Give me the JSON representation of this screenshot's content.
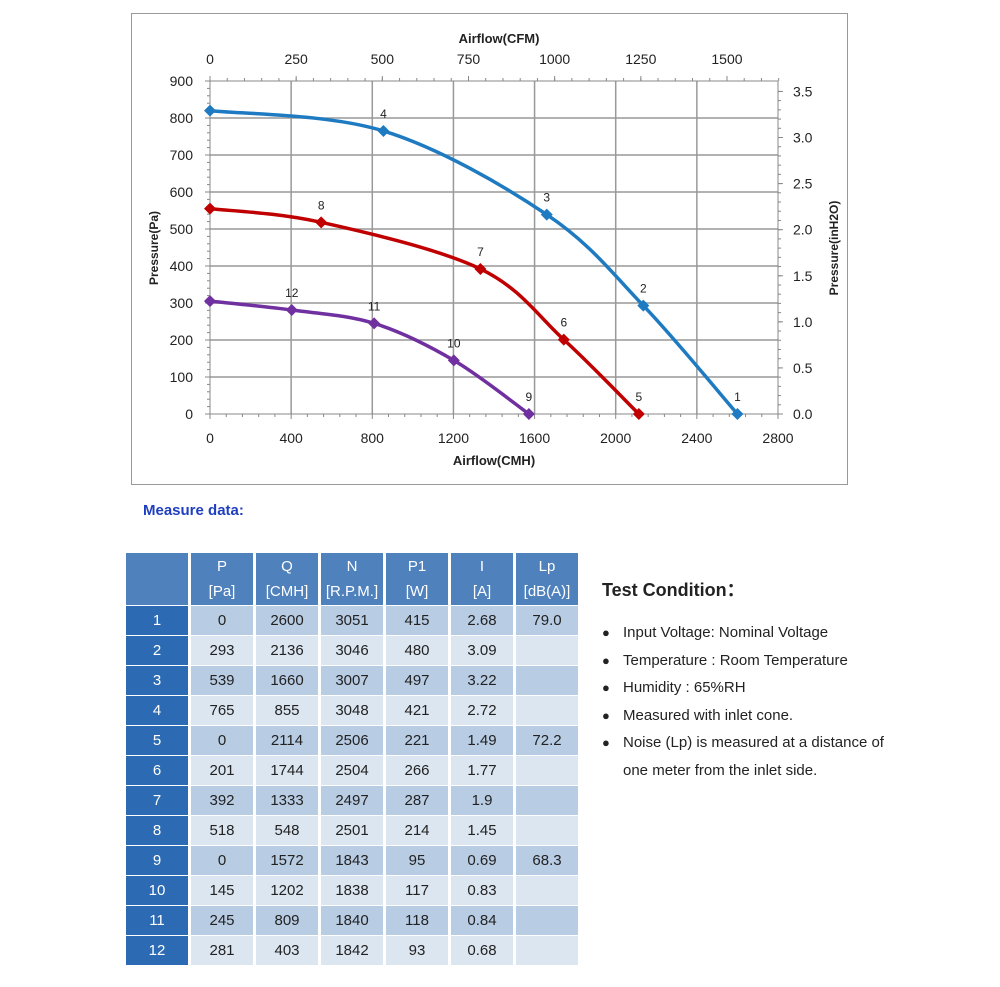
{
  "chart_data": {
    "type": "line",
    "xlabel": "Airflow(CMH)",
    "x2label": "Airflow(CFM)",
    "ylabel": "Pressure(Pa)",
    "y2label": "Pressure(inH2O)",
    "xlim": [
      0,
      2800
    ],
    "ylim": [
      0,
      900
    ],
    "x2lim": [
      0,
      1650
    ],
    "y2lim": [
      0,
      3.6
    ],
    "xticks": [
      0,
      400,
      800,
      1200,
      1600,
      2000,
      2400,
      2800
    ],
    "yticks": [
      0,
      100,
      200,
      300,
      400,
      500,
      600,
      700,
      800,
      900
    ],
    "x2ticks": [
      0,
      250,
      500,
      750,
      1000,
      1250,
      1500
    ],
    "y2ticks": [
      "0.0",
      "0.5",
      "1.0",
      "1.5",
      "2.0",
      "2.5",
      "3.0",
      "3.5"
    ],
    "grid": true,
    "series": [
      {
        "color": "#1f7bc1",
        "points": [
          {
            "x": 0,
            "y": 820,
            "label": ""
          },
          {
            "x": 855,
            "y": 765,
            "label": "4"
          },
          {
            "x": 1660,
            "y": 539,
            "label": "3"
          },
          {
            "x": 2136,
            "y": 293,
            "label": "2"
          },
          {
            "x": 2600,
            "y": 0,
            "label": "1"
          }
        ]
      },
      {
        "color": "#c00000",
        "points": [
          {
            "x": 0,
            "y": 555,
            "label": ""
          },
          {
            "x": 548,
            "y": 518,
            "label": "8"
          },
          {
            "x": 1333,
            "y": 392,
            "label": "7"
          },
          {
            "x": 1744,
            "y": 201,
            "label": "6"
          },
          {
            "x": 2114,
            "y": 0,
            "label": "5"
          }
        ]
      },
      {
        "color": "#7030a0",
        "points": [
          {
            "x": 0,
            "y": 305,
            "label": ""
          },
          {
            "x": 403,
            "y": 281,
            "label": "12"
          },
          {
            "x": 809,
            "y": 245,
            "label": "11"
          },
          {
            "x": 1202,
            "y": 145,
            "label": "10"
          },
          {
            "x": 1572,
            "y": 0,
            "label": "9"
          }
        ]
      }
    ]
  },
  "measure_title": "Measure data:",
  "table": {
    "headers": [
      [
        "P",
        "[Pa]"
      ],
      [
        "Q",
        "[CMH]"
      ],
      [
        "N",
        "[R.P.M.]"
      ],
      [
        "P1",
        "[W]"
      ],
      [
        "I",
        "[A]"
      ],
      [
        "Lp",
        "[dB(A)]"
      ]
    ],
    "rows": [
      [
        "1",
        "0",
        "2600",
        "3051",
        "415",
        "2.68",
        "79.0"
      ],
      [
        "2",
        "293",
        "2136",
        "3046",
        "480",
        "3.09",
        ""
      ],
      [
        "3",
        "539",
        "1660",
        "3007",
        "497",
        "3.22",
        ""
      ],
      [
        "4",
        "765",
        "855",
        "3048",
        "421",
        "2.72",
        ""
      ],
      [
        "5",
        "0",
        "2114",
        "2506",
        "221",
        "1.49",
        "72.2"
      ],
      [
        "6",
        "201",
        "1744",
        "2504",
        "266",
        "1.77",
        ""
      ],
      [
        "7",
        "392",
        "1333",
        "2497",
        "287",
        "1.9",
        ""
      ],
      [
        "8",
        "518",
        "548",
        "2501",
        "214",
        "1.45",
        ""
      ],
      [
        "9",
        "0",
        "1572",
        "1843",
        "95",
        "0.69",
        "68.3"
      ],
      [
        "10",
        "145",
        "1202",
        "1838",
        "117",
        "0.83",
        ""
      ],
      [
        "11",
        "245",
        "809",
        "1840",
        "118",
        "0.84",
        ""
      ],
      [
        "12",
        "281",
        "403",
        "1842",
        "93",
        "0.68",
        ""
      ]
    ]
  },
  "test_condition": {
    "title": "Test Condition：",
    "items": [
      "Input Voltage: Nominal Voltage",
      "Temperature : Room Temperature",
      "Humidity : 65%RH",
      "Measured with inlet cone.",
      "Noise (Lp) is measured at a distance of"
    ],
    "continuation": "one meter from the inlet side."
  }
}
